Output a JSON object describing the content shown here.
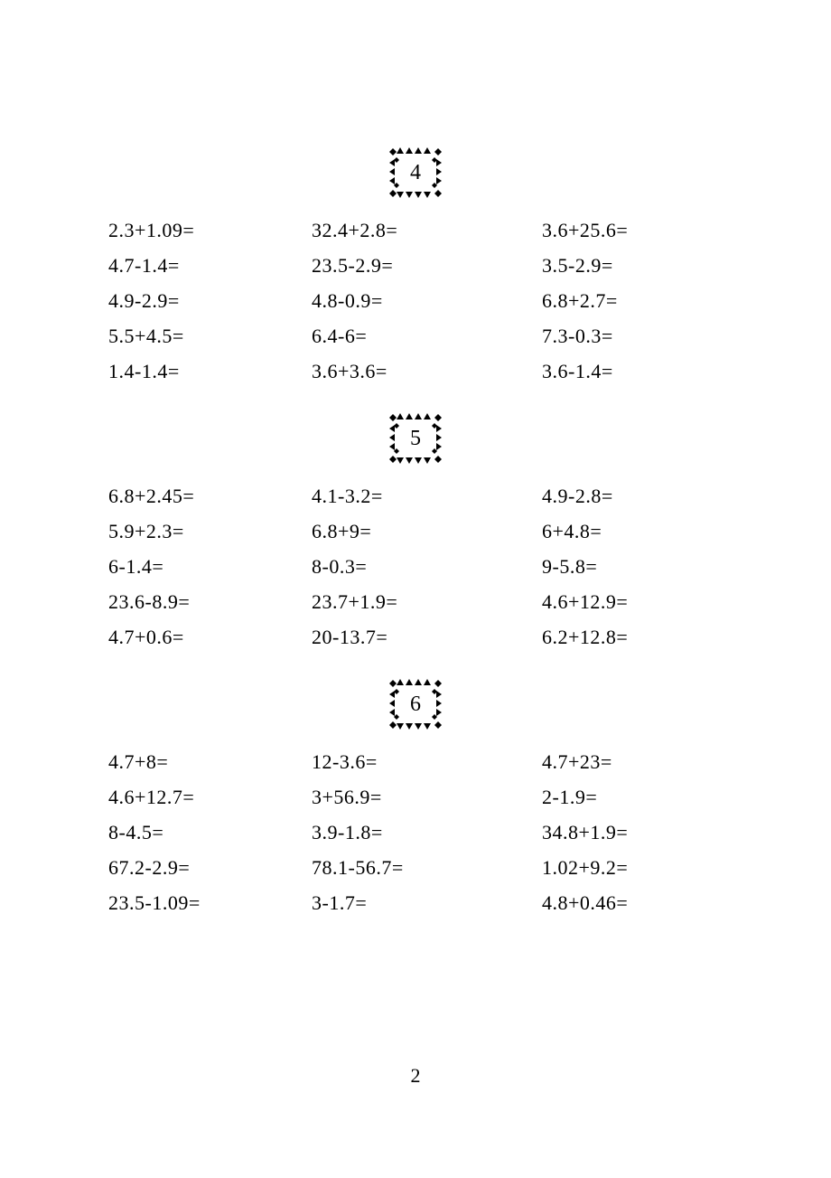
{
  "sections": [
    {
      "number": "4",
      "equations": [
        {
          "col": 1,
          "text": "2.3+1.09="
        },
        {
          "col": 2,
          "text": "32.4+2.8="
        },
        {
          "col": 3,
          "text": "3.6+25.6="
        },
        {
          "col": 1,
          "text": "4.7-1.4="
        },
        {
          "col": 2,
          "text": "23.5-2.9="
        },
        {
          "col": 3,
          "text": "3.5-2.9="
        },
        {
          "col": 1,
          "text": "4.9-2.9="
        },
        {
          "col": 2,
          "text": "4.8-0.9="
        },
        {
          "col": 3,
          "text": "6.8+2.7="
        },
        {
          "col": 1,
          "text": "5.5+4.5="
        },
        {
          "col": 2,
          "text": "6.4-6="
        },
        {
          "col": 3,
          "text": "7.3-0.3="
        },
        {
          "col": 1,
          "text": "1.4-1.4="
        },
        {
          "col": 2,
          "text": "3.6+3.6="
        },
        {
          "col": 3,
          "text": "3.6-1.4="
        }
      ]
    },
    {
      "number": "5",
      "equations": [
        {
          "col": 1,
          "text": "6.8+2.45="
        },
        {
          "col": 2,
          "text": "4.1-3.2="
        },
        {
          "col": 3,
          "text": "4.9-2.8="
        },
        {
          "col": 1,
          "text": "5.9+2.3="
        },
        {
          "col": 2,
          "text": "6.8+9="
        },
        {
          "col": 3,
          "text": "6+4.8="
        },
        {
          "col": 1,
          "text": "6-1.4="
        },
        {
          "col": 2,
          "text": "8-0.3="
        },
        {
          "col": 3,
          "text": "9-5.8="
        },
        {
          "col": 1,
          "text": "23.6-8.9="
        },
        {
          "col": 2,
          "text": "23.7+1.9="
        },
        {
          "col": 3,
          "text": "4.6+12.9="
        },
        {
          "col": 1,
          "text": "4.7+0.6="
        },
        {
          "col": 2,
          "text": "20-13.7="
        },
        {
          "col": 3,
          "text": "6.2+12.8="
        }
      ]
    },
    {
      "number": "6",
      "equations": [
        {
          "col": 1,
          "text": "4.7+8="
        },
        {
          "col": 2,
          "text": "12-3.6="
        },
        {
          "col": 3,
          "text": "4.7+23="
        },
        {
          "col": 1,
          "text": "4.6+12.7="
        },
        {
          "col": 2,
          "text": "3+56.9="
        },
        {
          "col": 3,
          "text": "2-1.9="
        },
        {
          "col": 1,
          "text": "8-4.5="
        },
        {
          "col": 2,
          "text": "3.9-1.8="
        },
        {
          "col": 3,
          "text": "34.8+1.9="
        },
        {
          "col": 1,
          "text": "67.2-2.9="
        },
        {
          "col": 2,
          "text": "78.1-56.7="
        },
        {
          "col": 3,
          "text": "1.02+9.2="
        },
        {
          "col": 1,
          "text": "23.5-1.09="
        },
        {
          "col": 2,
          "text": "3-1.7="
        },
        {
          "col": 3,
          "text": "4.8+0.46="
        }
      ]
    }
  ],
  "page_number": "2",
  "colors": {
    "text": "#000000",
    "background": "#ffffff"
  }
}
